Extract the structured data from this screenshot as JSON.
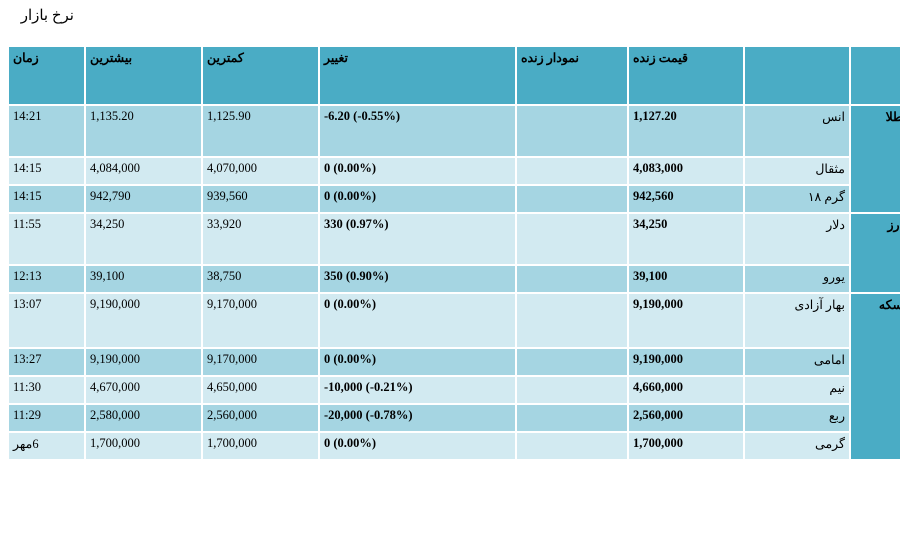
{
  "page": {
    "title": "نرخ بازار"
  },
  "table": {
    "headers": {
      "category": "",
      "name": "",
      "live_price": "قیمت زنده",
      "live_chart": "نمودار زنده",
      "change": "تغییر",
      "min": "کمترین",
      "max": "بیشترین",
      "time": "زمان"
    },
    "groups": [
      {
        "category": "طلا",
        "rows": [
          {
            "name": "انس",
            "live_price": "1,127.20",
            "chart": "",
            "change": "-6.20 (-0.55%)",
            "min": "1,125.90",
            "max": "1,135.20",
            "time": "14:21"
          },
          {
            "name": "مثقال",
            "live_price": "4,083,000",
            "chart": "",
            "change": "0 (0.00%)",
            "min": "4,070,000",
            "max": "4,084,000",
            "time": "14:15"
          },
          {
            "name": "گرم ۱۸",
            "live_price": "942,560",
            "chart": "",
            "change": "0 (0.00%)",
            "min": "939,560",
            "max": "942,790",
            "time": "14:15"
          }
        ]
      },
      {
        "category": "ارز",
        "rows": [
          {
            "name": "دلار",
            "live_price": "34,250",
            "chart": "",
            "change": "330 (0.97%)",
            "min": "33,920",
            "max": "34,250",
            "time": "11:55"
          },
          {
            "name": "یورو",
            "live_price": "39,100",
            "chart": "",
            "change": "350 (0.90%)",
            "min": "38,750",
            "max": "39,100",
            "time": "12:13"
          }
        ]
      },
      {
        "category": "سکه",
        "rows": [
          {
            "name": "بهار آزادی",
            "live_price": "9,190,000",
            "chart": "",
            "change": "0 (0.00%)",
            "min": "9,170,000",
            "max": "9,190,000",
            "time": "13:07"
          },
          {
            "name": "امامی",
            "live_price": "9,190,000",
            "chart": "",
            "change": "0 (0.00%)",
            "min": "9,170,000",
            "max": "9,190,000",
            "time": "13:27"
          },
          {
            "name": "نیم",
            "live_price": "4,660,000",
            "chart": "",
            "change": "-10,000 (-0.21%)",
            "min": "4,650,000",
            "max": "4,670,000",
            "time": "11:30"
          },
          {
            "name": "ربع",
            "live_price": "2,560,000",
            "chart": "",
            "change": "-20,000 (-0.78%)",
            "min": "2,560,000",
            "max": "2,580,000",
            "time": "11:29"
          },
          {
            "name": "گرمی",
            "live_price": "1,700,000",
            "chart": "",
            "change": "0 (0.00%)",
            "min": "1,700,000",
            "max": "1,700,000",
            "time": "6مهر"
          }
        ]
      }
    ]
  }
}
